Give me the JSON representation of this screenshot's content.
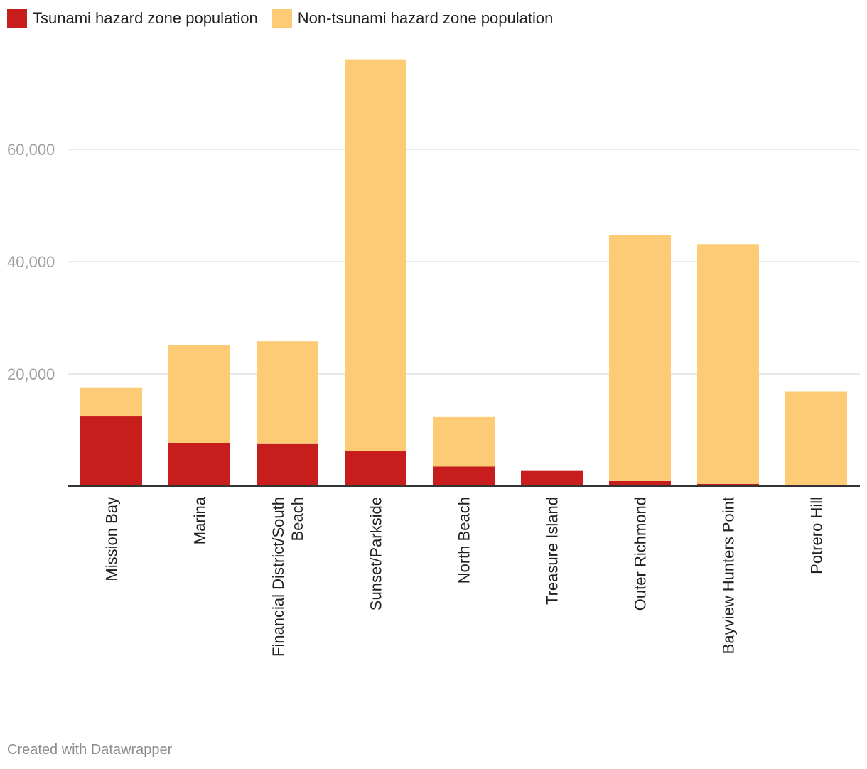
{
  "chart_data": {
    "type": "bar",
    "stacked": true,
    "categories": [
      "Mission Bay",
      "Marina",
      "Financial District/South Beach",
      "Sunset/Parkside",
      "North Beach",
      "Treasure Island",
      "Outer Richmond",
      "Bayview Hunters Point",
      "Potrero Hill"
    ],
    "category_lines": [
      [
        "Mission Bay"
      ],
      [
        "Marina"
      ],
      [
        "Financial District/South",
        "Beach"
      ],
      [
        "Sunset/Parkside"
      ],
      [
        "North Beach"
      ],
      [
        "Treasure Island"
      ],
      [
        "Outer Richmond"
      ],
      [
        "Bayview Hunters Point"
      ],
      [
        "Potrero Hill"
      ]
    ],
    "series": [
      {
        "name": "Tsunami hazard zone population",
        "color": "#c71e1d",
        "values": [
          12400,
          7600,
          7500,
          6200,
          3500,
          2700,
          900,
          400,
          100
        ]
      },
      {
        "name": "Non-tsunami hazard zone population",
        "color": "#fdca76",
        "values": [
          5100,
          17500,
          18300,
          69800,
          8800,
          0,
          43900,
          42600,
          16800
        ]
      }
    ],
    "y_ticks": [
      20000,
      40000,
      60000
    ],
    "y_tick_labels": [
      "20,000",
      "40,000",
      "60,000"
    ],
    "ylim": [
      0,
      80000
    ],
    "grid": true,
    "legend": "top-left",
    "title": "",
    "xlabel": "",
    "ylabel": ""
  },
  "footer": {
    "credit": "Created with Datawrapper"
  }
}
